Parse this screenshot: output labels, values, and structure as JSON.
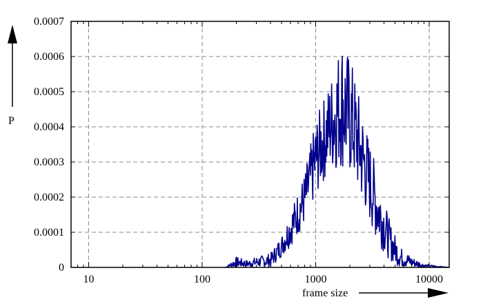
{
  "chart_data": {
    "type": "line",
    "xlabel": "frame size",
    "ylabel": "P",
    "x_scale": "log",
    "xlim": [
      7,
      15000
    ],
    "ylim": [
      0,
      0.0007
    ],
    "grid": true,
    "x_ticks": [
      {
        "value": 10,
        "label": "10"
      },
      {
        "value": 100,
        "label": "100"
      },
      {
        "value": 1000,
        "label": "1000"
      },
      {
        "value": 10000,
        "label": "10000"
      }
    ],
    "y_ticks": [
      {
        "value": 0,
        "label": "0"
      },
      {
        "value": 0.0001,
        "label": "0.0001"
      },
      {
        "value": 0.0002,
        "label": "0.0002"
      },
      {
        "value": 0.0003,
        "label": "0.0003"
      },
      {
        "value": 0.0004,
        "label": "0.0004"
      },
      {
        "value": 0.0005,
        "label": "0.0005"
      },
      {
        "value": 0.0006,
        "label": "0.0006"
      },
      {
        "value": 0.0007,
        "label": "0.0007"
      }
    ],
    "series": [
      {
        "color": "#00008b",
        "envelope": [
          {
            "x": 160,
            "low": 0.0,
            "high": 0.0
          },
          {
            "x": 200,
            "low": 0.0,
            "high": 3e-05
          },
          {
            "x": 250,
            "low": 0.0,
            "high": 2e-05
          },
          {
            "x": 300,
            "low": 0.0,
            "high": 3e-05
          },
          {
            "x": 400,
            "low": 0.0,
            "high": 4e-05
          },
          {
            "x": 500,
            "low": 3e-05,
            "high": 9e-05
          },
          {
            "x": 600,
            "low": 6e-05,
            "high": 0.00016
          },
          {
            "x": 800,
            "low": 0.00012,
            "high": 0.00027
          },
          {
            "x": 1000,
            "low": 0.0002,
            "high": 0.00042
          },
          {
            "x": 1300,
            "low": 0.00027,
            "high": 0.00052
          },
          {
            "x": 1700,
            "low": 0.00028,
            "high": 0.00066
          },
          {
            "x": 2100,
            "low": 0.00025,
            "high": 0.00058
          },
          {
            "x": 2700,
            "low": 0.00016,
            "high": 0.00042
          },
          {
            "x": 3500,
            "low": 7e-05,
            "high": 0.00027
          },
          {
            "x": 4500,
            "low": 2e-05,
            "high": 0.00013
          },
          {
            "x": 5500,
            "low": 0.0,
            "high": 6e-05
          },
          {
            "x": 7000,
            "low": 0.0,
            "high": 3e-05
          },
          {
            "x": 9000,
            "low": 0.0,
            "high": 1e-05
          },
          {
            "x": 15000,
            "low": 0.0,
            "high": 0.0
          }
        ]
      }
    ]
  }
}
